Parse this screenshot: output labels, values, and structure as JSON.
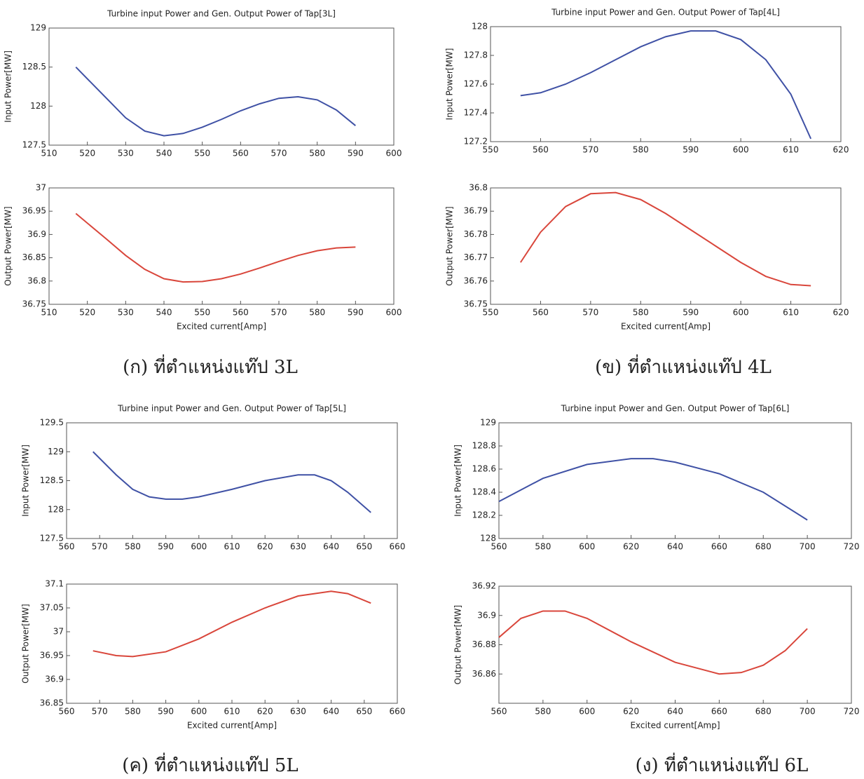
{
  "chart_data": [
    {
      "type": "line",
      "title": "Turbine input Power and Gen. Output Power of Tap[3L]",
      "ylabel": "Input Power[MW]",
      "x": [
        517,
        525,
        530,
        535,
        540,
        545,
        550,
        555,
        560,
        565,
        570,
        575,
        580,
        585,
        590
      ],
      "values": [
        128.5,
        128.1,
        127.85,
        127.68,
        127.62,
        127.65,
        127.73,
        127.83,
        127.94,
        128.03,
        128.1,
        128.12,
        128.08,
        127.95,
        127.75
      ],
      "color": "#3f51a5",
      "xlim": [
        510,
        600
      ],
      "xticks": [
        510,
        520,
        530,
        540,
        550,
        560,
        570,
        580,
        590,
        600
      ],
      "ylim": [
        127.5,
        129
      ],
      "yticks": [
        127.5,
        128,
        128.5,
        129
      ]
    },
    {
      "type": "line",
      "xlabel": "Excited current[Amp]",
      "ylabel": "Output Power[MW]",
      "x": [
        517,
        525,
        530,
        535,
        540,
        545,
        550,
        555,
        560,
        565,
        570,
        575,
        580,
        585,
        590
      ],
      "values": [
        36.945,
        36.89,
        36.855,
        36.825,
        36.805,
        36.798,
        36.799,
        36.805,
        36.815,
        36.828,
        36.842,
        36.855,
        36.865,
        36.871,
        36.873
      ],
      "color": "#d9463b",
      "xlim": [
        510,
        600
      ],
      "xticks": [
        510,
        520,
        530,
        540,
        550,
        560,
        570,
        580,
        590,
        600
      ],
      "ylim": [
        36.75,
        37
      ],
      "yticks": [
        36.75,
        36.8,
        36.85,
        36.9,
        36.95,
        37
      ]
    },
    {
      "type": "line",
      "title": "Turbine input Power and Gen. Output Power of Tap[4L]",
      "ylabel": "Input Power[MW]",
      "x": [
        556,
        560,
        565,
        570,
        575,
        580,
        585,
        590,
        595,
        600,
        605,
        610,
        614
      ],
      "values": [
        127.52,
        127.54,
        127.6,
        127.68,
        127.77,
        127.86,
        127.93,
        127.97,
        127.97,
        127.91,
        127.77,
        127.53,
        127.22
      ],
      "color": "#3f51a5",
      "xlim": [
        550,
        620
      ],
      "xticks": [
        550,
        560,
        570,
        580,
        590,
        600,
        610,
        620
      ],
      "ylim": [
        127.2,
        128
      ],
      "yticks": [
        127.2,
        127.4,
        127.6,
        127.8,
        128
      ]
    },
    {
      "type": "line",
      "xlabel": "Excited current[Amp]",
      "ylabel": "Output Power[MW]",
      "x": [
        556,
        560,
        565,
        570,
        575,
        580,
        585,
        590,
        595,
        600,
        605,
        610,
        614
      ],
      "values": [
        36.768,
        36.781,
        36.792,
        36.7975,
        36.798,
        36.795,
        36.789,
        36.782,
        36.775,
        36.768,
        36.762,
        36.7585,
        36.758
      ],
      "color": "#d9463b",
      "xlim": [
        550,
        620
      ],
      "xticks": [
        550,
        560,
        570,
        580,
        590,
        600,
        610,
        620
      ],
      "ylim": [
        36.75,
        36.8
      ],
      "yticks": [
        36.75,
        36.76,
        36.77,
        36.78,
        36.79,
        36.8
      ]
    },
    {
      "type": "line",
      "title": "Turbine input Power and Gen. Output Power of Tap[5L]",
      "ylabel": "Input Power[MW]",
      "x": [
        568,
        575,
        580,
        585,
        590,
        595,
        600,
        610,
        620,
        630,
        635,
        640,
        645,
        652
      ],
      "values": [
        129,
        128.6,
        128.35,
        128.22,
        128.18,
        128.18,
        128.22,
        128.35,
        128.5,
        128.6,
        128.6,
        128.5,
        128.3,
        127.95
      ],
      "color": "#3f51a5",
      "xlim": [
        560,
        660
      ],
      "xticks": [
        560,
        570,
        580,
        590,
        600,
        610,
        620,
        630,
        640,
        650,
        660
      ],
      "ylim": [
        127.5,
        129.5
      ],
      "yticks": [
        127.5,
        128,
        128.5,
        129,
        129.5
      ]
    },
    {
      "type": "line",
      "xlabel": "Excited current[Amp]",
      "ylabel": "Output Power[MW]",
      "x": [
        568,
        575,
        580,
        590,
        600,
        610,
        620,
        630,
        640,
        645,
        652
      ],
      "values": [
        36.96,
        36.95,
        36.948,
        36.958,
        36.985,
        37.02,
        37.05,
        37.075,
        37.085,
        37.08,
        37.06
      ],
      "color": "#d9463b",
      "xlim": [
        560,
        660
      ],
      "xticks": [
        560,
        570,
        580,
        590,
        600,
        610,
        620,
        630,
        640,
        650,
        660
      ],
      "ylim": [
        36.85,
        37.1
      ],
      "yticks": [
        36.85,
        36.9,
        36.95,
        37,
        37.05,
        37.1
      ]
    },
    {
      "type": "line",
      "title": "Turbine input Power and Gen. Output Power of Tap[6L]",
      "ylabel": "Input Power[MW]",
      "x": [
        560,
        580,
        600,
        620,
        630,
        640,
        660,
        680,
        700
      ],
      "values": [
        128.32,
        128.52,
        128.64,
        128.69,
        128.69,
        128.66,
        128.56,
        128.4,
        128.16
      ],
      "color": "#3f51a5",
      "xlim": [
        560,
        720
      ],
      "xticks": [
        560,
        580,
        600,
        620,
        640,
        660,
        680,
        700,
        720
      ],
      "ylim": [
        128,
        129
      ],
      "yticks": [
        128,
        128.2,
        128.4,
        128.6,
        128.8,
        129
      ]
    },
    {
      "type": "line",
      "xlabel": "Excited current[Amp]",
      "ylabel": "Output Power[MW]",
      "x": [
        560,
        570,
        580,
        590,
        600,
        620,
        640,
        660,
        670,
        680,
        690,
        700
      ],
      "values": [
        36.885,
        36.898,
        36.903,
        36.903,
        36.898,
        36.882,
        36.868,
        36.86,
        36.861,
        36.866,
        36.876,
        36.891
      ],
      "color": "#d9463b",
      "xlim": [
        560,
        720
      ],
      "xticks": [
        560,
        580,
        600,
        620,
        640,
        660,
        680,
        700,
        720
      ],
      "ylim": [
        36.84,
        36.92
      ],
      "yticks": [
        36.86,
        36.88,
        36.9,
        36.92
      ]
    }
  ],
  "captions": [
    "(ก) ที่ตำแหน่งแท๊ป 3L",
    "(ข) ที่ตำแหน่งแท๊ป 4L",
    "(ค) ที่ตำแหน่งแท๊ป 5L",
    "(ง) ที่ตำแหน่งแท๊ป 6L"
  ]
}
